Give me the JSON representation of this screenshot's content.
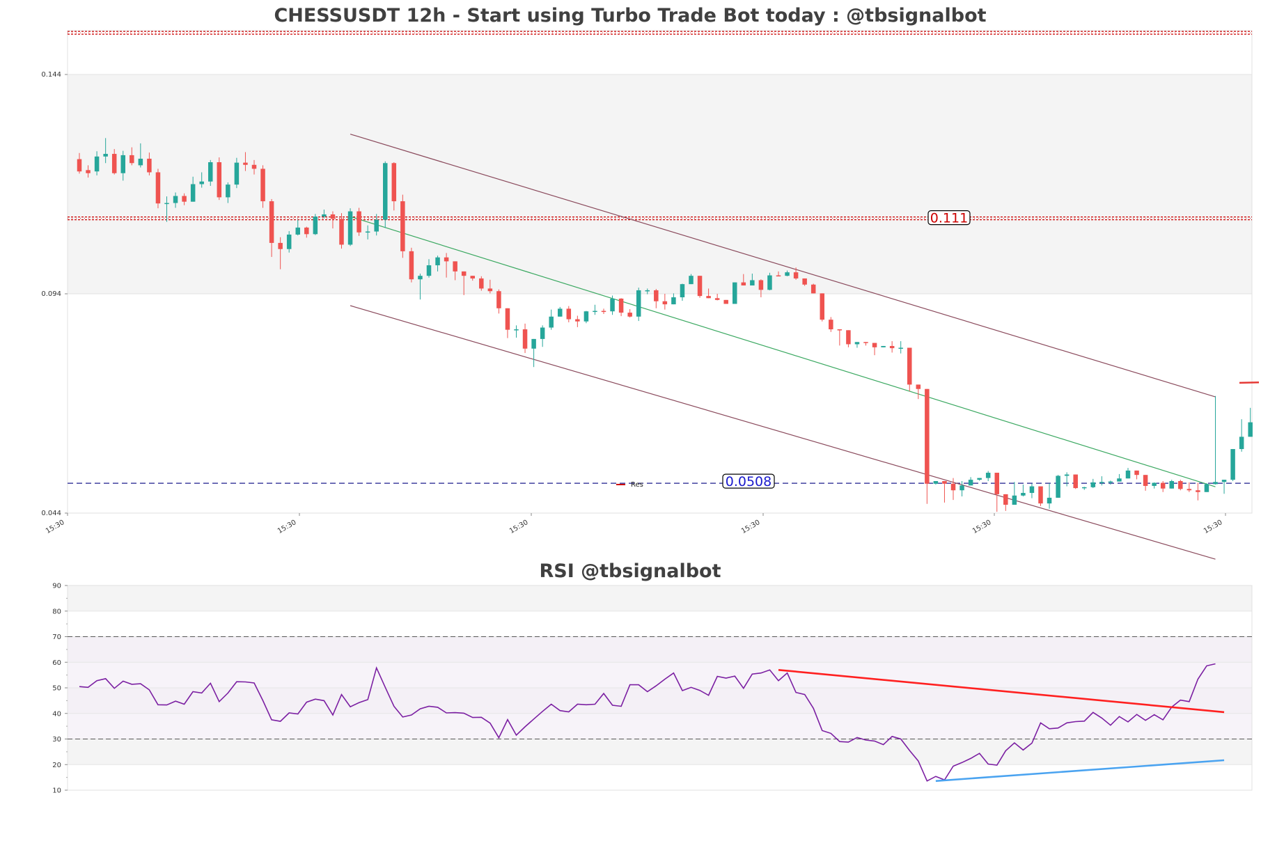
{
  "chart_data": [
    {
      "type": "candlestick",
      "title": "CHESSUSDT 12h - Start using Turbo Trade Bot today : @tbsignalbot",
      "ylim": [
        0.044,
        0.155
      ],
      "y_ticks": [
        "0.144",
        "0.094",
        "0.044"
      ],
      "x_ticks": [
        "15:30",
        "15:30",
        "15:30",
        "15:30",
        "15:30",
        "15:30"
      ],
      "legend": {
        "position": "center-bottom",
        "entries": [
          "Res"
        ]
      },
      "levels": [
        {
          "label": "0.111",
          "value": 0.1112,
          "color": "#cc0000",
          "style": "double-dotted"
        },
        {
          "label": "0.0508",
          "value": 0.0508,
          "color": "#1a1a8c",
          "style": "dashed"
        }
      ],
      "top_level": {
        "value": 0.1535,
        "color": "#cc0000"
      },
      "shaded_band": [
        0.094,
        0.144
      ],
      "channel": {
        "upper": [
          [
            31,
            0.1304
          ],
          [
            130,
            0.0705
          ]
        ],
        "lower": [
          [
            31,
            0.0913
          ],
          [
            130,
            0.0335
          ]
        ],
        "mid": [
          [
            31,
            0.1116
          ],
          [
            130,
            0.05
          ]
        ]
      },
      "candles": [
        [
          0.1247,
          0.1219,
          0.1261,
          0.1214
        ],
        [
          0.1222,
          0.1215,
          0.1233,
          0.1205
        ],
        [
          0.1219,
          0.1253,
          0.1265,
          0.121
        ],
        [
          0.1253,
          0.1259,
          0.1295,
          0.1238
        ],
        [
          0.1259,
          0.1215,
          0.127,
          0.1212
        ],
        [
          0.1215,
          0.1256,
          0.1266,
          0.1198
        ],
        [
          0.1256,
          0.1238,
          0.1274,
          0.1233
        ],
        [
          0.1233,
          0.1248,
          0.1283,
          0.1228
        ],
        [
          0.1248,
          0.1217,
          0.1262,
          0.121
        ],
        [
          0.1217,
          0.1146,
          0.1225,
          0.1135
        ],
        [
          0.1146,
          0.1147,
          0.1162,
          0.1104
        ],
        [
          0.1147,
          0.1163,
          0.1171,
          0.1136
        ],
        [
          0.1163,
          0.115,
          0.1169,
          0.1142
        ],
        [
          0.115,
          0.119,
          0.1207,
          0.115
        ],
        [
          0.119,
          0.1196,
          0.1217,
          0.1182
        ],
        [
          0.1196,
          0.124,
          0.1245,
          0.1186
        ],
        [
          0.124,
          0.116,
          0.1251,
          0.1154
        ],
        [
          0.116,
          0.1189,
          0.1194,
          0.1147
        ],
        [
          0.1189,
          0.1239,
          0.125,
          0.1181
        ],
        [
          0.1239,
          0.1234,
          0.1263,
          0.122
        ],
        [
          0.1234,
          0.1225,
          0.1245,
          0.1212
        ],
        [
          0.1225,
          0.1151,
          0.1233,
          0.1136
        ],
        [
          0.1151,
          0.1056,
          0.1156,
          0.1024
        ],
        [
          0.1056,
          0.1042,
          0.1069,
          0.0996
        ],
        [
          0.1042,
          0.1075,
          0.1083,
          0.1034
        ],
        [
          0.1075,
          0.1091,
          0.1109,
          0.1073
        ],
        [
          0.1091,
          0.1076,
          0.1093,
          0.1068
        ],
        [
          0.1076,
          0.1116,
          0.1122,
          0.1074
        ],
        [
          0.1116,
          0.1121,
          0.1132,
          0.1112
        ],
        [
          0.1121,
          0.1111,
          0.1128,
          0.1089
        ],
        [
          0.1111,
          0.1052,
          0.1124,
          0.1043
        ],
        [
          0.1052,
          0.1128,
          0.1135,
          0.1049
        ],
        [
          0.1128,
          0.108,
          0.1136,
          0.1072
        ],
        [
          0.108,
          0.1082,
          0.1096,
          0.1064
        ],
        [
          0.1082,
          0.1109,
          0.1122,
          0.1073
        ],
        [
          0.1109,
          0.1238,
          0.1242,
          0.109
        ],
        [
          0.1238,
          0.1151,
          0.124,
          0.113
        ],
        [
          0.1151,
          0.1037,
          0.1166,
          0.1022
        ],
        [
          0.1037,
          0.0973,
          0.1045,
          0.0966
        ],
        [
          0.0973,
          0.0981,
          0.0986,
          0.0927
        ],
        [
          0.0981,
          0.1005,
          0.1019,
          0.0977
        ],
        [
          0.1005,
          0.1023,
          0.1027,
          0.0991
        ],
        [
          0.1023,
          0.1014,
          0.1033,
          0.0977
        ],
        [
          0.1014,
          0.0991,
          0.1012,
          0.0971
        ],
        [
          0.0991,
          0.0981,
          0.0989,
          0.0937
        ],
        [
          0.0981,
          0.0975,
          0.0981,
          0.097
        ],
        [
          0.0975,
          0.0952,
          0.098,
          0.0947
        ],
        [
          0.0952,
          0.0946,
          0.0972,
          0.0941
        ],
        [
          0.0946,
          0.0907,
          0.095,
          0.0895
        ],
        [
          0.0907,
          0.0858,
          0.0906,
          0.0839
        ],
        [
          0.0858,
          0.0859,
          0.0868,
          0.084
        ],
        [
          0.0859,
          0.0815,
          0.0872,
          0.0805
        ],
        [
          0.0815,
          0.0837,
          0.0832,
          0.0773
        ],
        [
          0.0837,
          0.0863,
          0.0868,
          0.0819
        ],
        [
          0.0863,
          0.0888,
          0.0904,
          0.0858
        ],
        [
          0.0888,
          0.0906,
          0.091,
          0.089
        ],
        [
          0.0906,
          0.0882,
          0.0912,
          0.0875
        ],
        [
          0.0882,
          0.0877,
          0.089,
          0.0864
        ],
        [
          0.0877,
          0.09,
          0.0901,
          0.0873
        ],
        [
          0.09,
          0.0901,
          0.0915,
          0.0892
        ],
        [
          0.0901,
          0.09,
          0.0906,
          0.0894
        ],
        [
          0.09,
          0.0929,
          0.0936,
          0.0892
        ],
        [
          0.0929,
          0.0897,
          0.093,
          0.0889
        ],
        [
          0.0897,
          0.0888,
          0.0905,
          0.0886
        ],
        [
          0.0888,
          0.0948,
          0.0954,
          0.0878
        ],
        [
          0.0948,
          0.0948,
          0.0952,
          0.0939
        ],
        [
          0.0948,
          0.0923,
          0.0951,
          0.0907
        ],
        [
          0.0923,
          0.0916,
          0.094,
          0.0904
        ],
        [
          0.0916,
          0.0932,
          0.0941,
          0.0916
        ],
        [
          0.0932,
          0.0962,
          0.0963,
          0.0924
        ],
        [
          0.0962,
          0.0981,
          0.0985,
          0.0962
        ],
        [
          0.0981,
          0.0935,
          0.0979,
          0.0931
        ],
        [
          0.0935,
          0.093,
          0.0952,
          0.0935
        ],
        [
          0.093,
          0.0926,
          0.094,
          0.0925
        ],
        [
          0.0926,
          0.0917,
          0.0926,
          0.0917
        ],
        [
          0.0917,
          0.0966,
          0.0963,
          0.0917
        ],
        [
          0.0966,
          0.0959,
          0.0985,
          0.0961
        ],
        [
          0.0959,
          0.0971,
          0.0986,
          0.0961
        ],
        [
          0.0971,
          0.0949,
          0.0973,
          0.0932
        ],
        [
          0.0949,
          0.0982,
          0.0988,
          0.0948
        ],
        [
          0.0982,
          0.0981,
          0.0991,
          0.098
        ],
        [
          0.0981,
          0.0989,
          0.0993,
          0.098
        ],
        [
          0.0989,
          0.0975,
          0.1,
          0.0972
        ],
        [
          0.0975,
          0.0961,
          0.0974,
          0.0958
        ],
        [
          0.0961,
          0.0941,
          0.0963,
          0.0941
        ],
        [
          0.0941,
          0.0881,
          0.093,
          0.0877
        ],
        [
          0.0881,
          0.0859,
          0.0887,
          0.0853
        ],
        [
          0.0859,
          0.0857,
          0.0859,
          0.0822
        ],
        [
          0.0857,
          0.0825,
          0.0835,
          0.0818
        ],
        [
          0.0825,
          0.083,
          0.0825,
          0.0817
        ],
        [
          0.083,
          0.0828,
          0.082,
          0.0822
        ],
        [
          0.0828,
          0.0818,
          0.082,
          0.08
        ],
        [
          0.0818,
          0.0821,
          0.0818,
          0.082
        ],
        [
          0.0821,
          0.0816,
          0.0832,
          0.0806
        ],
        [
          0.0816,
          0.0817,
          0.0832,
          0.0804
        ],
        [
          0.0817,
          0.0733,
          0.0816,
          0.0718
        ],
        [
          0.0733,
          0.0723,
          0.0709,
          0.07
        ],
        [
          0.0723,
          0.0507,
          0.0704,
          0.0461
        ],
        [
          0.0507,
          0.0513,
          0.0507,
          0.0505
        ],
        [
          0.0513,
          0.0507,
          0.0511,
          0.0464
        ],
        [
          0.0507,
          0.0492,
          0.052,
          0.047
        ],
        [
          0.0492,
          0.0503,
          0.0513,
          0.0478
        ],
        [
          0.0503,
          0.0516,
          0.0522,
          0.0503
        ],
        [
          0.0516,
          0.052,
          0.0515,
          0.0514
        ],
        [
          0.052,
          0.0532,
          0.0536,
          0.0513
        ],
        [
          0.0532,
          0.0483,
          0.0525,
          0.0443
        ],
        [
          0.0483,
          0.0459,
          0.048,
          0.0445
        ],
        [
          0.0459,
          0.048,
          0.0511,
          0.046
        ],
        [
          0.048,
          0.0486,
          0.0505,
          0.0478
        ],
        [
          0.0486,
          0.0501,
          0.0507,
          0.0474
        ],
        [
          0.0501,
          0.0462,
          0.0501,
          0.0456
        ],
        [
          0.0462,
          0.0475,
          0.0508,
          0.045
        ],
        [
          0.0475,
          0.0525,
          0.0527,
          0.0479
        ],
        [
          0.0525,
          0.0528,
          0.0533,
          0.0501
        ],
        [
          0.0528,
          0.0497,
          0.0526,
          0.0495
        ],
        [
          0.0497,
          0.0499,
          0.05,
          0.0493
        ],
        [
          0.0499,
          0.051,
          0.0518,
          0.0497
        ],
        [
          0.051,
          0.0511,
          0.0524,
          0.0503
        ],
        [
          0.0511,
          0.0512,
          0.0514,
          0.0505
        ],
        [
          0.0512,
          0.0519,
          0.0529,
          0.0518
        ],
        [
          0.0519,
          0.0537,
          0.0543,
          0.0522
        ],
        [
          0.0537,
          0.0527,
          0.0537,
          0.0517
        ],
        [
          0.0527,
          0.0502,
          0.0521,
          0.0491
        ],
        [
          0.0502,
          0.0509,
          0.051,
          0.0496
        ],
        [
          0.0509,
          0.0496,
          0.0513,
          0.0488
        ],
        [
          0.0496,
          0.0513,
          0.0516,
          0.0497
        ],
        [
          0.0513,
          0.0495,
          0.0516,
          0.0492
        ],
        [
          0.0495,
          0.0492,
          0.051,
          0.0488
        ],
        [
          0.0492,
          0.0488,
          0.0509,
          0.0469
        ],
        [
          0.0488,
          0.0506,
          0.0508,
          0.049
        ],
        [
          0.0506,
          0.0511,
          0.0707,
          0.0505
        ],
        [
          0.0511,
          0.0516,
          0.0514,
          0.0484
        ],
        [
          0.0516,
          0.0586,
          0.0585,
          0.0513
        ],
        [
          0.0586,
          0.0614,
          0.0654,
          0.058
        ],
        [
          0.0614,
          0.0647,
          0.068,
          0.0625
        ]
      ]
    },
    {
      "type": "line",
      "title": "RSI @tbsignalbot",
      "ylim": [
        10,
        90
      ],
      "y_ticks": [
        "90",
        "80",
        "70",
        "60",
        "50",
        "40",
        "30",
        "20",
        "10"
      ],
      "overbought": 70,
      "oversold": 30,
      "series": [
        {
          "color": "#7b1fa2",
          "values": [
            50.5,
            50.2,
            52.8,
            53.6,
            49.8,
            52.6,
            51.4,
            51.6,
            49.2,
            43.4,
            43.3,
            44.8,
            43.6,
            48.5,
            48.0,
            51.8,
            44.6,
            48.0,
            52.4,
            52.3,
            51.9,
            45.0,
            37.5,
            36.9,
            40.2,
            39.8,
            44.4,
            45.6,
            45.0,
            39.4,
            47.4,
            42.6,
            44.2,
            45.4,
            57.8,
            50.2,
            42.8,
            38.6,
            39.4,
            41.8,
            42.8,
            42.4,
            40.2,
            40.3,
            40.1,
            38.4,
            38.5,
            36.2,
            30.5,
            37.6,
            31.5,
            34.8,
            37.8,
            40.8,
            43.6,
            41.1,
            40.6,
            43.6,
            43.4,
            43.6,
            47.8,
            43.2,
            42.8,
            51.2,
            51.2,
            48.5,
            50.8,
            53.4,
            55.8,
            48.9,
            50.2,
            49.0,
            47.1,
            54.5,
            53.8,
            54.6,
            49.8,
            55.4,
            55.8,
            57.0,
            52.8,
            55.8,
            48.2,
            47.4,
            42.0,
            33.3,
            32.2,
            29.0,
            28.8,
            30.6,
            29.6,
            29.2,
            27.8,
            31.0,
            30.0,
            25.5,
            21.4,
            13.6,
            15.4,
            14.0,
            19.4,
            20.8,
            22.4,
            24.4,
            20.2,
            19.8,
            25.4,
            28.5,
            25.7,
            28.4,
            36.3,
            34.0,
            34.3,
            36.3,
            36.8,
            37.0,
            40.4,
            38.2,
            35.4,
            38.8,
            36.7,
            39.6,
            37.3,
            39.5,
            37.5,
            42.5,
            45.2,
            44.6,
            53.4,
            58.6,
            59.4
          ]
        }
      ],
      "trendlines": [
        {
          "color": "#ff2020",
          "points": [
            [
              80,
              57.0
            ],
            [
              131,
              40.5
            ]
          ]
        },
        {
          "color": "#4aa3f0",
          "points": [
            [
              98,
              13.6
            ],
            [
              131,
              21.7
            ]
          ]
        }
      ]
    }
  ]
}
